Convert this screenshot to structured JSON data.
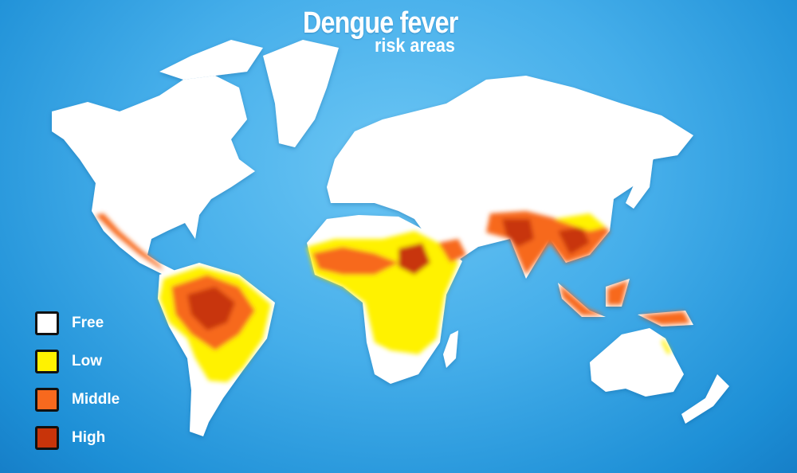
{
  "title": "Dengue fever",
  "subtitle": "risk areas",
  "colors": {
    "free": "#ffffff",
    "low": "#fff200",
    "middle": "#f7691e",
    "high": "#c8340a",
    "ocean": "#45aeea"
  },
  "legend": [
    {
      "label": "Free",
      "color": "#ffffff"
    },
    {
      "label": "Low",
      "color": "#fff200"
    },
    {
      "label": "Middle",
      "color": "#f7691e"
    },
    {
      "label": "High",
      "color": "#c8340a"
    }
  ]
}
